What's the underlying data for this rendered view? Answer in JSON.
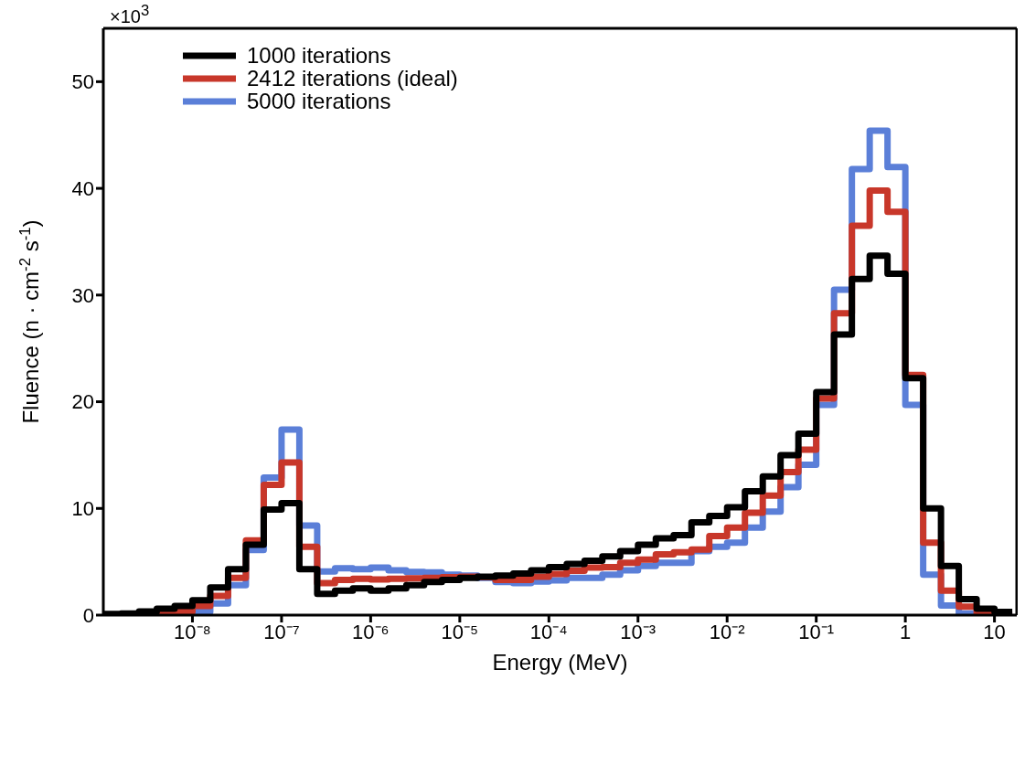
{
  "chart_data": {
    "type": "histogram",
    "xlabel": "Energy (MeV)",
    "ylabel": "Fluence (n · cm$^{-2}$ s$^{-1}$)",
    "annotations": [
      "×10$^{3}$"
    ],
    "log": "x",
    "legend": "top left",
    "line_style": "solid",
    "xlim": [
      1e-09,
      17.8
    ],
    "ylim": [
      0,
      55
    ],
    "xticks": [
      {
        "value": 1e-08,
        "label": "10⁻⁸"
      },
      {
        "value": 1e-07,
        "label": "10⁻⁷"
      },
      {
        "value": 1e-06,
        "label": "10⁻⁶"
      },
      {
        "value": 1e-05,
        "label": "10⁻⁵"
      },
      {
        "value": 0.0001,
        "label": "10⁻⁴"
      },
      {
        "value": 0.001,
        "label": "10⁻³"
      },
      {
        "value": 0.01,
        "label": "10⁻²"
      },
      {
        "value": 0.1,
        "label": "10⁻¹"
      },
      1,
      10
    ],
    "yticks": [
      0,
      10,
      20,
      30,
      40,
      50
    ],
    "bins": [
      1e-09,
      1.585e-09,
      2.512e-09,
      3.981e-09,
      6.31e-09,
      1e-08,
      1.585e-08,
      2.512e-08,
      3.981e-08,
      6.31e-08,
      1e-07,
      1.585e-07,
      2.512e-07,
      3.981e-07,
      6.31e-07,
      1e-06,
      1.585e-06,
      2.512e-06,
      3.981e-06,
      6.31e-06,
      1e-05,
      1.585e-05,
      2.512e-05,
      3.981e-05,
      6.31e-05,
      0.0001,
      0.0001585,
      0.0002512,
      0.0003981,
      0.000631,
      0.001,
      0.001585,
      0.002512,
      0.003981,
      0.00631,
      0.01,
      0.01585,
      0.02512,
      0.03981,
      0.0631,
      0.1,
      0.1585,
      0.2512,
      0.3981,
      0.631,
      1,
      1.585,
      2.512,
      3.981,
      6.31,
      10,
      15.85
    ],
    "series": [
      {
        "name": "1000 iterations",
        "color": "#000000",
        "values": [
          0.1,
          0.15,
          0.35,
          0.6,
          0.85,
          1.4,
          2.6,
          4.3,
          6.6,
          9.9,
          10.5,
          4.3,
          2.0,
          2.3,
          2.5,
          2.3,
          2.5,
          2.8,
          3.1,
          3.3,
          3.5,
          3.6,
          3.7,
          3.9,
          4.2,
          4.5,
          4.8,
          5.1,
          5.5,
          6.0,
          6.6,
          7.2,
          7.5,
          8.7,
          9.3,
          10.1,
          11.6,
          13.0,
          15.0,
          17.0,
          20.9,
          26.3,
          31.5,
          33.7,
          32.0,
          22.2,
          10.0,
          4.6,
          1.5,
          0.6,
          0.3
        ]
      },
      {
        "name": "2412 iterations (ideal)",
        "color": "#c8372a",
        "values": [
          0,
          0,
          0.05,
          0.1,
          0.3,
          0.85,
          1.8,
          3.5,
          7.0,
          12.2,
          14.3,
          6.4,
          3.0,
          3.3,
          3.4,
          3.35,
          3.4,
          3.45,
          3.5,
          3.55,
          3.6,
          3.55,
          3.3,
          3.3,
          3.6,
          3.85,
          4.15,
          4.45,
          4.5,
          4.9,
          5.2,
          5.7,
          5.9,
          6.15,
          7.4,
          8.2,
          9.6,
          11.2,
          13.4,
          15.5,
          20.3,
          28.3,
          36.5,
          39.8,
          37.8,
          22.5,
          6.8,
          2.3,
          0.8,
          0.15,
          0.05
        ]
      },
      {
        "name": "5000 iterations",
        "color": "#5b7fd8",
        "values": [
          0,
          0,
          0,
          0.05,
          0.1,
          0.3,
          1.1,
          2.8,
          6.1,
          12.9,
          17.4,
          8.4,
          4.1,
          4.4,
          4.3,
          4.45,
          4.2,
          4.05,
          4.0,
          3.8,
          3.7,
          3.5,
          3.1,
          3.0,
          3.15,
          3.25,
          3.5,
          3.5,
          3.8,
          4.2,
          4.6,
          4.9,
          4.9,
          6.0,
          6.4,
          6.8,
          8.2,
          9.7,
          12.0,
          14.1,
          19.7,
          30.5,
          41.8,
          45.4,
          42.0,
          19.7,
          3.8,
          0.9,
          0.15,
          0.05,
          0
        ]
      }
    ]
  }
}
